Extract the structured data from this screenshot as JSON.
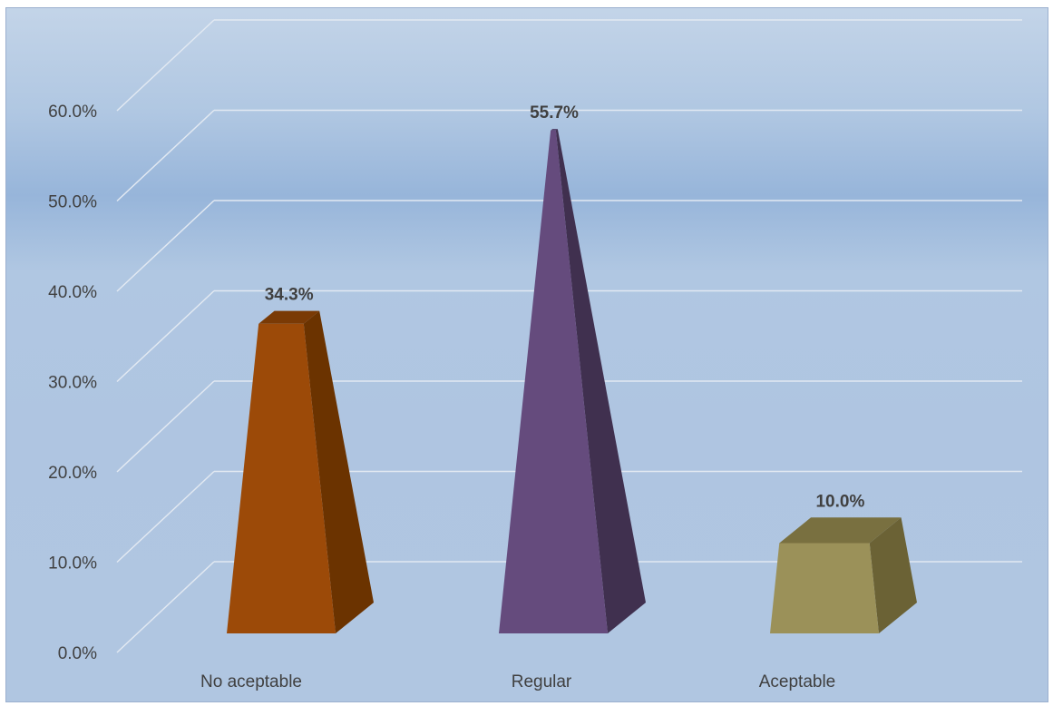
{
  "chart_data": {
    "type": "bar",
    "shape": "3d-pyramid",
    "categories": [
      "No aceptable",
      "Regular",
      "Aceptable"
    ],
    "values": [
      34.3,
      55.7,
      10.0
    ],
    "data_labels": [
      "34.3%",
      "55.7%",
      "10.0%"
    ],
    "y_ticks": [
      "0.0%",
      "10.0%",
      "20.0%",
      "30.0%",
      "40.0%",
      "50.0%",
      "60.0%"
    ],
    "ylim": [
      0,
      60
    ],
    "grid": true,
    "legend": "none",
    "colors": {
      "bars": [
        "#9c4a08",
        "#654b7d",
        "#9b9159"
      ],
      "bar_sides": [
        "#6b3300",
        "#40304f",
        "#6b6235"
      ],
      "bar_tops": [
        "#7a3a05",
        "#4d3a63",
        "#797040"
      ],
      "gridline": "#e2e9f2"
    }
  }
}
